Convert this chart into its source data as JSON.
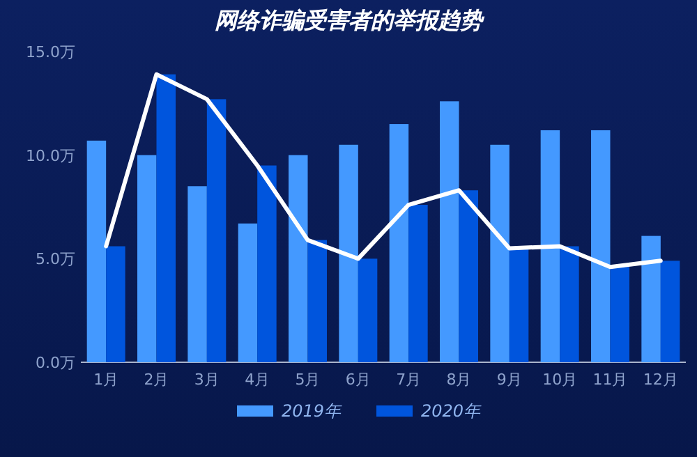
{
  "chart_data": {
    "type": "bar",
    "title": "网络诈骗受害者的举报趋势",
    "categories": [
      "1月",
      "2月",
      "3月",
      "4月",
      "5月",
      "6月",
      "7月",
      "8月",
      "9月",
      "10月",
      "11月",
      "12月"
    ],
    "series": [
      {
        "name": "2019年",
        "color": "#4499ff",
        "values": [
          10.7,
          10.0,
          8.5,
          6.7,
          10.0,
          10.5,
          11.5,
          12.6,
          10.5,
          11.2,
          11.2,
          6.1
        ]
      },
      {
        "name": "2020年",
        "color": "#0055dd",
        "values": [
          5.6,
          13.9,
          12.7,
          9.5,
          5.9,
          5.0,
          7.6,
          8.3,
          5.5,
          5.6,
          4.6,
          4.9
        ]
      },
      {
        "type": "line",
        "color": "#ffffff",
        "values": [
          5.6,
          13.9,
          12.7,
          9.5,
          5.9,
          5.0,
          7.6,
          8.3,
          5.5,
          5.6,
          4.6,
          4.9
        ]
      }
    ],
    "ylim": [
      0,
      15
    ],
    "yticks": [
      {
        "value": 0,
        "label": "0.0万"
      },
      {
        "value": 5,
        "label": "5.0万"
      },
      {
        "value": 10,
        "label": "10.0万"
      },
      {
        "value": 15,
        "label": "15.0万"
      }
    ],
    "grid": false,
    "legend": "bottom",
    "marker": "none"
  }
}
